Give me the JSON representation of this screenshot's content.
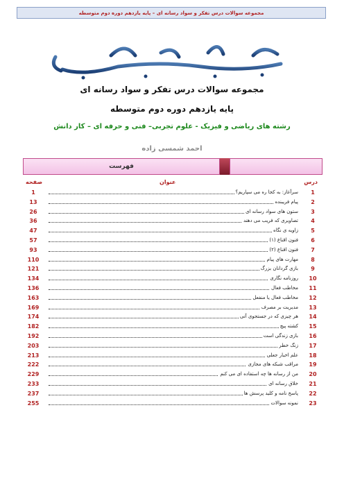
{
  "header": "مجموعه سوالات درس تفکر و سواد رسانه ای – پایه یازدهم دوره دوم متوسطه",
  "title_line1": "مجموعه سوالات درس تفکر و سواد رسانه ای",
  "title_line2": "پایه یازدهم دوره دوم متوسطه",
  "title_line3": "رشته های ریاضی و فیزیک - علوم تجربی– فنی و حرفه ای – کار دانش",
  "author": "احمد شمسی زاده",
  "toc_label": "فهرست",
  "columns": {
    "lesson": "درس",
    "title": "عنوان",
    "page": "صفحه"
  },
  "colors": {
    "accent": "#b02020",
    "green": "#1f8a1f",
    "bar": "#f3c2e6"
  },
  "rows": [
    {
      "num": "1",
      "title": "سرآغاز: به کجا ره می سپاریم؟",
      "page": "1"
    },
    {
      "num": "2",
      "title": "پیام فریبنده",
      "page": "13"
    },
    {
      "num": "3",
      "title": "ستون های سواد رسانه ای",
      "page": "26"
    },
    {
      "num": "4",
      "title": "تصاویری که فریب می دهند",
      "page": "36"
    },
    {
      "num": "5",
      "title": "زاویه ی نگاه",
      "page": "47"
    },
    {
      "num": "6",
      "title": "فنون اقناع (۱)",
      "page": "57"
    },
    {
      "num": "7",
      "title": "فنون اقناع (۲)",
      "page": "93"
    },
    {
      "num": "8",
      "title": "مهارت های پیام",
      "page": "110"
    },
    {
      "num": "9",
      "title": "بازی گردانان بزرگ",
      "page": "121"
    },
    {
      "num": "10",
      "title": "روزنامه نگاری",
      "page": "134"
    },
    {
      "num": "11",
      "title": "مخاطب فعال",
      "page": "136"
    },
    {
      "num": "12",
      "title": "مخاطب فعال یا منفعل",
      "page": "163"
    },
    {
      "num": "13",
      "title": "مدیریت بر مصرف",
      "page": "169"
    },
    {
      "num": "14",
      "title": "هر چیزی که در جستجوی آنی",
      "page": "174"
    },
    {
      "num": "15",
      "title": "کشته پیچ",
      "page": "182"
    },
    {
      "num": "16",
      "title": "بازی زندگی است",
      "page": "192"
    },
    {
      "num": "17",
      "title": "زنگ خطر",
      "page": "203"
    },
    {
      "num": "18",
      "title": "علم اخبار جعلی",
      "page": "213"
    },
    {
      "num": "19",
      "title": "مراقب شبکه های مجازی",
      "page": "222"
    },
    {
      "num": "20",
      "title": "من از رسانه ها چه استفاده ای می کنم",
      "page": "229"
    },
    {
      "num": "21",
      "title": "خلاق رسانه ای",
      "page": "233"
    },
    {
      "num": "22",
      "title": "پاسخ نامه و کلید پرسش ها",
      "page": "237"
    },
    {
      "num": "23",
      "title": "نمونه سوالات",
      "page": "255"
    }
  ]
}
